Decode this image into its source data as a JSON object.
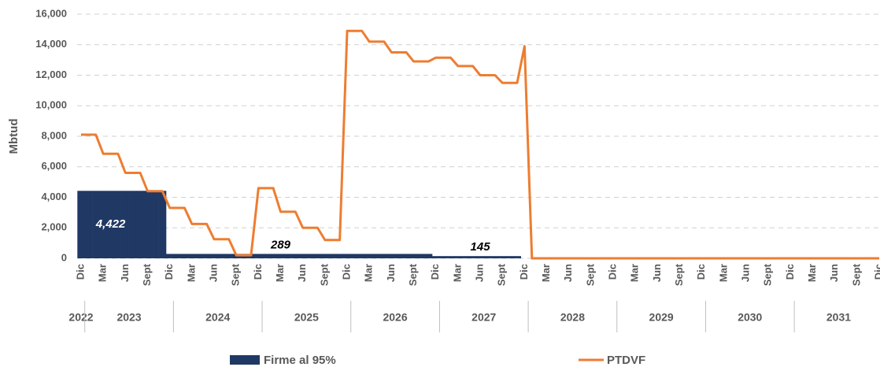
{
  "chart_data": {
    "type": "bar",
    "y_label": "Mbtud",
    "ylim": [
      0,
      16000
    ],
    "yticks": [
      0,
      {
        "value": 2000,
        "label": "2,000"
      },
      {
        "value": 4000,
        "label": "4,000"
      },
      {
        "value": 6000,
        "label": "6,000"
      },
      {
        "value": 8000,
        "label": "8,000"
      },
      {
        "value": 10000,
        "label": "10,000"
      },
      {
        "value": 12000,
        "label": "12,000"
      },
      {
        "value": 14000,
        "label": "14,000"
      },
      {
        "value": 16000,
        "label": "16,000"
      }
    ],
    "grid": true,
    "legend": "bottom",
    "categories": [
      "Dic",
      null,
      null,
      "Mar",
      null,
      null,
      "Jun",
      null,
      null,
      "Sept",
      null,
      null,
      "Dic",
      null,
      null,
      "Mar",
      null,
      null,
      "Jun",
      null,
      null,
      "Sept",
      null,
      null,
      "Dic",
      null,
      null,
      "Mar",
      null,
      null,
      "Jun",
      null,
      null,
      "Sept",
      null,
      null,
      "Dic",
      null,
      null,
      "Mar",
      null,
      null,
      "Jun",
      null,
      null,
      "Sept",
      null,
      null,
      "Dic",
      null,
      null,
      "Mar",
      null,
      null,
      "Jun",
      null,
      null,
      "Sept",
      null,
      null,
      "Dic",
      null,
      null,
      "Mar",
      null,
      null,
      "Jun",
      null,
      null,
      "Sept",
      null,
      null,
      "Dic",
      null,
      null,
      "Mar",
      null,
      null,
      "Jun",
      null,
      null,
      "Sept",
      null,
      null,
      "Dic",
      null,
      null,
      "Mar",
      null,
      null,
      "Jun",
      null,
      null,
      "Sept",
      null,
      null,
      "Dic",
      null,
      null,
      "Mar",
      null,
      null,
      "Jun",
      null,
      null,
      "Sept",
      null,
      null,
      "Dic"
    ],
    "category_years": [
      2022,
      2023,
      2023,
      2023,
      2023,
      2023,
      2023,
      2023,
      2023,
      2023,
      2023,
      2023,
      2023,
      2024,
      2024,
      2024,
      2024,
      2024,
      2024,
      2024,
      2024,
      2024,
      2024,
      2024,
      2024,
      2025,
      2025,
      2025,
      2025,
      2025,
      2025,
      2025,
      2025,
      2025,
      2025,
      2025,
      2025,
      2026,
      2026,
      2026,
      2026,
      2026,
      2026,
      2026,
      2026,
      2026,
      2026,
      2026,
      2026,
      2027,
      2027,
      2027,
      2027,
      2027,
      2027,
      2027,
      2027,
      2027,
      2027,
      2027,
      2027,
      2028,
      2028,
      2028,
      2028,
      2028,
      2028,
      2028,
      2028,
      2028,
      2028,
      2028,
      2028,
      2029,
      2029,
      2029,
      2029,
      2029,
      2029,
      2029,
      2029,
      2029,
      2029,
      2029,
      2029,
      2030,
      2030,
      2030,
      2030,
      2030,
      2030,
      2030,
      2030,
      2030,
      2030,
      2030,
      2030,
      2031,
      2031,
      2031,
      2031,
      2031,
      2031,
      2031,
      2031,
      2031,
      2031,
      2031,
      2031
    ],
    "series": [
      {
        "name": "Firme al 95%",
        "type": "bar",
        "color": "#203864",
        "values": [
          4422,
          4422,
          4422,
          4422,
          4422,
          4422,
          4422,
          4422,
          4422,
          4422,
          4422,
          4422,
          289,
          289,
          289,
          289,
          289,
          289,
          289,
          289,
          289,
          289,
          289,
          289,
          289,
          289,
          289,
          289,
          289,
          289,
          289,
          289,
          289,
          289,
          289,
          289,
          289,
          289,
          289,
          289,
          289,
          289,
          289,
          289,
          289,
          289,
          289,
          289,
          145,
          145,
          145,
          145,
          145,
          145,
          145,
          145,
          145,
          145,
          145,
          145,
          0,
          0,
          0,
          0,
          0,
          0,
          0,
          0,
          0,
          0,
          0,
          0,
          0,
          0,
          0,
          0,
          0,
          0,
          0,
          0,
          0,
          0,
          0,
          0,
          0,
          0,
          0,
          0,
          0,
          0,
          0,
          0,
          0,
          0,
          0,
          0,
          0,
          0,
          0,
          0,
          0,
          0,
          0,
          0,
          0,
          0,
          0,
          0,
          0
        ],
        "value_labels": [
          null,
          null,
          null,
          null,
          "4,422",
          null,
          null,
          null,
          null,
          null,
          null,
          null,
          null,
          null,
          null,
          null,
          null,
          null,
          null,
          null,
          null,
          null,
          null,
          null,
          null,
          null,
          null,
          "289",
          null,
          null,
          null,
          null,
          null,
          null,
          null,
          null,
          null,
          null,
          null,
          null,
          null,
          null,
          null,
          null,
          null,
          null,
          null,
          null,
          null,
          null,
          null,
          null,
          null,
          null,
          "145",
          null,
          null,
          null,
          null,
          null,
          null,
          null,
          null,
          null,
          null,
          null,
          null,
          null,
          null,
          null,
          null,
          null,
          null,
          null,
          null,
          null,
          null,
          null,
          null,
          null,
          null,
          null,
          null,
          null,
          null,
          null,
          null,
          null,
          null,
          null,
          null,
          null,
          null,
          null,
          null,
          null,
          null,
          null,
          null,
          null,
          null,
          null,
          null,
          null,
          null,
          null,
          null,
          null,
          null
        ]
      },
      {
        "name": "PTDVF",
        "type": "line",
        "color": "#ed7d31",
        "values": [
          8100,
          8100,
          8100,
          6850,
          6850,
          6850,
          5600,
          5600,
          5600,
          4400,
          4400,
          4400,
          3300,
          3300,
          3300,
          2250,
          2250,
          2250,
          1250,
          1250,
          1250,
          200,
          200,
          200,
          4600,
          4600,
          4600,
          3050,
          3050,
          3050,
          2000,
          2000,
          2000,
          1200,
          1200,
          1200,
          14900,
          14900,
          14900,
          14200,
          14200,
          14200,
          13500,
          13500,
          13500,
          12900,
          12900,
          12900,
          13150,
          13150,
          13150,
          12600,
          12600,
          12600,
          12000,
          12000,
          12000,
          11500,
          11500,
          11500,
          13900,
          0,
          0,
          0,
          0,
          0,
          0,
          0,
          0,
          0,
          0,
          0,
          0,
          0,
          0,
          0,
          0,
          0,
          0,
          0,
          0,
          0,
          0,
          0,
          0,
          0,
          0,
          0,
          0,
          0,
          0,
          0,
          0,
          0,
          0,
          0,
          0,
          0,
          0,
          0,
          0,
          0,
          0,
          0,
          0,
          0,
          0,
          0,
          0
        ]
      }
    ]
  }
}
